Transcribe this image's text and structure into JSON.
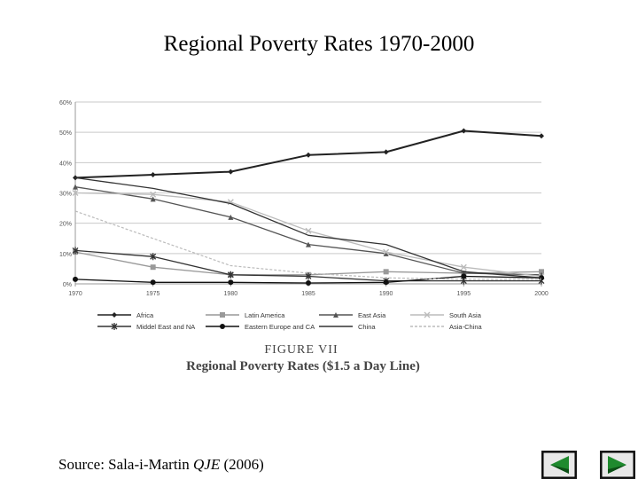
{
  "slide": {
    "title": "Regional Poverty Rates 1970-2000",
    "source_prefix": "Source: Sala-i-Martin",
    "source_journal": "QJE",
    "source_year": "(2006)"
  },
  "nav": {
    "prev_icon": "previous-slide-icon",
    "next_icon": "next-slide-icon"
  },
  "colors": {
    "nav_fill": "#1f8a2e",
    "nav_dark": "#0d4f16",
    "grid": "#c9c9c9",
    "axis": "#999999",
    "text": "#555555"
  },
  "chart_data": {
    "type": "line",
    "figure_label": "FIGURE VII",
    "caption": "Regional Poverty Rates ($1.5 a Day Line)",
    "x": [
      1970,
      1975,
      1980,
      1985,
      1990,
      1995,
      2000
    ],
    "ylim": [
      0,
      60
    ],
    "yticks": [
      0,
      10,
      20,
      30,
      40,
      50,
      60
    ],
    "ytick_labels": [
      "0%",
      "10%",
      "20%",
      "30%",
      "40%",
      "50%",
      "60%"
    ],
    "xlabel": "",
    "ylabel": "",
    "grid": true,
    "series": [
      {
        "name": "Africa",
        "values": [
          35,
          36,
          37,
          42.5,
          43.5,
          50.5,
          48.8
        ],
        "marker": "diamond",
        "color": "#222222",
        "width": 2
      },
      {
        "name": "Latin America",
        "values": [
          10.5,
          5.5,
          3,
          3,
          4,
          3.5,
          4
        ],
        "marker": "square",
        "color": "#999999",
        "width": 1.3
      },
      {
        "name": "East Asia",
        "values": [
          32,
          28,
          22,
          13,
          10,
          3.5,
          3
        ],
        "marker": "triangle",
        "color": "#555555",
        "width": 1.3
      },
      {
        "name": "South Asia",
        "values": [
          30,
          29.5,
          27,
          17.5,
          10.5,
          5.5,
          2.5
        ],
        "marker": "x",
        "color": "#bbbbbb",
        "width": 1.3
      },
      {
        "name": "Middel East and NA",
        "values": [
          11,
          9,
          3,
          2.5,
          1,
          1,
          1
        ],
        "marker": "star",
        "color": "#333333",
        "width": 1.3
      },
      {
        "name": "Eastern Europe and CA",
        "values": [
          1.5,
          0.5,
          0.5,
          0.3,
          0.5,
          2.5,
          2
        ],
        "marker": "circle",
        "color": "#111111",
        "width": 1.3
      },
      {
        "name": "China",
        "values": [
          35,
          31.5,
          26.5,
          16,
          13,
          4,
          2
        ],
        "marker": "none",
        "color": "#333333",
        "width": 1.3
      },
      {
        "name": "Asia-China",
        "values": [
          24,
          15,
          6,
          3.5,
          2,
          1.5,
          1.5
        ],
        "marker": "none",
        "color": "#bbbbbb",
        "width": 1.2,
        "dash": "3,2"
      }
    ]
  }
}
